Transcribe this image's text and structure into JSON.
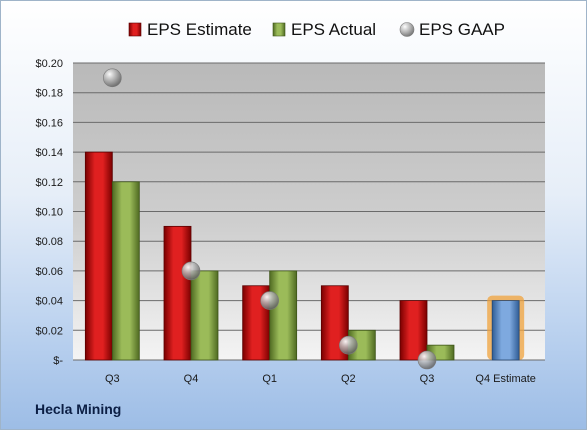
{
  "company": "Hecla Mining",
  "chart_data": {
    "type": "bar",
    "categories": [
      "Q3",
      "Q4",
      "Q1",
      "Q2",
      "Q3",
      "Q4 Estimate"
    ],
    "series": [
      {
        "name": "EPS Estimate",
        "values": [
          0.14,
          0.09,
          0.05,
          0.05,
          0.04,
          null
        ],
        "color": "#c00000"
      },
      {
        "name": "EPS Actual",
        "values": [
          0.12,
          0.06,
          0.06,
          0.02,
          0.01,
          null
        ],
        "color": "#76933c"
      },
      {
        "name": "EPS GAAP",
        "values": [
          0.19,
          0.06,
          0.04,
          0.01,
          0.0,
          null
        ],
        "color": "#a6a6a6",
        "marker": "sphere"
      }
    ],
    "forecast": {
      "category": "Q4 Estimate",
      "value": 0.04,
      "color": "#4f81bd",
      "glow": "#f0a33c"
    },
    "yticks": [
      "$0.20",
      "$0.18",
      "$0.16",
      "$0.14",
      "$0.12",
      "$0.10",
      "$0.08",
      "$0.06",
      "$0.04",
      "$0.02",
      "$-"
    ],
    "ylim": [
      0,
      0.2
    ],
    "legend_position": "top",
    "grid": true
  }
}
